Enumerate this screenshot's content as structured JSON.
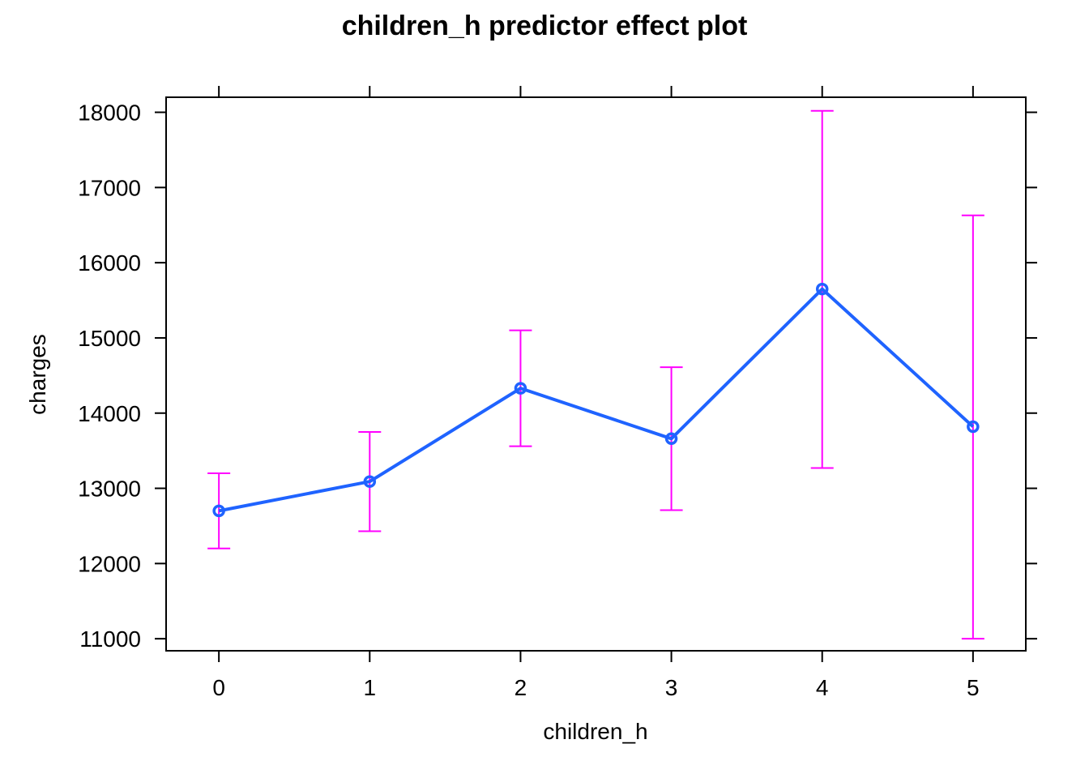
{
  "chart_data": {
    "type": "line",
    "title": "children_h predictor effect plot",
    "xlabel": "children_h",
    "ylabel": "charges",
    "x": [
      0,
      1,
      2,
      3,
      4,
      5
    ],
    "x_tick_labels": [
      "0",
      "1",
      "2",
      "3",
      "4",
      "5"
    ],
    "y_ticks": [
      11000,
      12000,
      13000,
      14000,
      15000,
      16000,
      17000,
      18000
    ],
    "y_tick_labels": [
      "11000",
      "12000",
      "13000",
      "14000",
      "15000",
      "16000",
      "17000",
      "18000"
    ],
    "xlim": [
      -0.35,
      5.35
    ],
    "ylim": [
      10840,
      18200
    ],
    "series": [
      {
        "values": [
          12700,
          13090,
          14330,
          13660,
          15650,
          13820
        ],
        "lower": [
          12200,
          12430,
          13560,
          12710,
          13270,
          11000
        ],
        "upper": [
          13200,
          13750,
          15100,
          14610,
          18020,
          16630
        ]
      }
    ],
    "grid": false,
    "legend": "none",
    "colors": {
      "line": "#1f63ff",
      "error_bar": "#ff00ff",
      "frame": "#000000"
    }
  }
}
